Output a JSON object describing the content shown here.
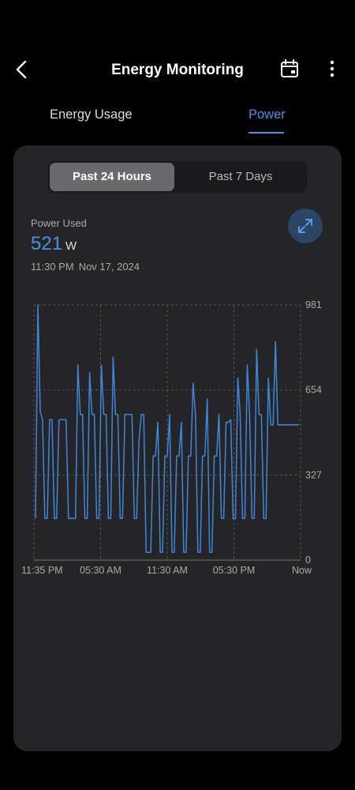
{
  "header": {
    "title": "Energy Monitoring"
  },
  "tabs": [
    {
      "label": "Energy Usage"
    },
    {
      "label": "Power"
    }
  ],
  "range": {
    "options": [
      "Past 24 Hours",
      "Past 7 Days"
    ],
    "selected": "Past 24 Hours"
  },
  "reading": {
    "label": "Power Used",
    "value": "521",
    "unit": "W",
    "time": "11:30 PM",
    "date": "Nov 17, 2024"
  },
  "colors": {
    "accent": "#4a8fe0",
    "card": "#252527",
    "background": "#000000"
  },
  "chart_data": {
    "type": "line",
    "x_ticks": [
      "11:35 PM",
      "05:30 AM",
      "11:30 AM",
      "05:30 PM",
      "Now"
    ],
    "y_ticks": [
      "0",
      "327",
      "654",
      "981"
    ],
    "ylim": [
      0,
      981
    ],
    "grid": true,
    "series": [
      {
        "values": [
          160,
          981,
          570,
          540,
          160,
          160,
          540,
          540,
          160,
          160,
          540,
          540,
          540,
          540,
          160,
          160,
          160,
          160,
          750,
          560,
          560,
          160,
          160,
          720,
          560,
          560,
          160,
          160,
          750,
          560,
          560,
          160,
          160,
          780,
          560,
          560,
          160,
          160,
          560,
          560,
          560,
          560,
          160,
          160,
          460,
          560,
          560,
          30,
          30,
          30,
          400,
          400,
          530,
          30,
          30,
          400,
          400,
          560,
          30,
          30,
          400,
          400,
          530,
          30,
          30,
          400,
          400,
          680,
          560,
          30,
          30,
          400,
          400,
          620,
          30,
          30,
          400,
          400,
          560,
          160,
          160,
          530,
          530,
          540,
          160,
          160,
          700,
          560,
          160,
          160,
          750,
          560,
          160,
          160,
          810,
          560,
          560,
          160,
          160,
          700,
          520,
          520,
          840,
          520,
          520,
          520,
          520,
          520,
          520,
          520,
          520,
          520,
          520
        ]
      }
    ]
  }
}
